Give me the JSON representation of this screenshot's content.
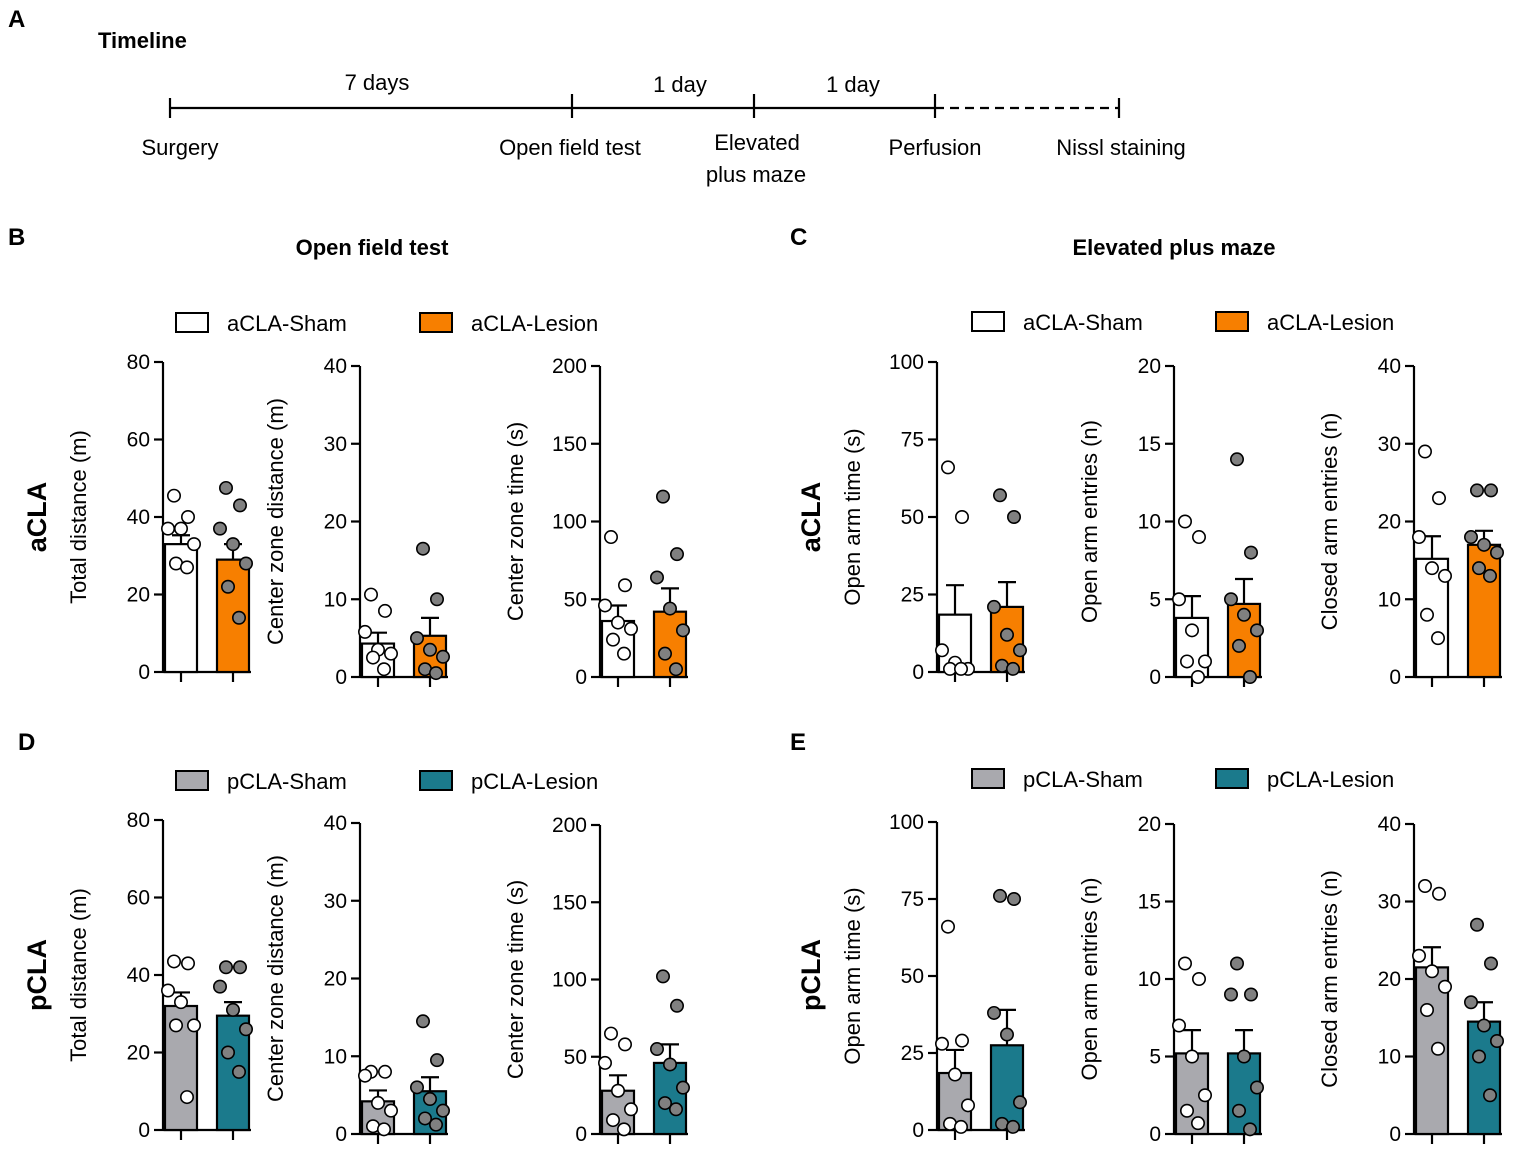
{
  "panel_letters": {
    "a": "A",
    "b": "B",
    "c": "C",
    "d": "D",
    "e": "E"
  },
  "timeline": {
    "title": "Timeline",
    "stages": [
      "Surgery",
      "Open field test",
      "Elevated",
      "plus maze",
      "Perfusion",
      "Nissl staining"
    ],
    "intervals": [
      "7 days",
      "1 day",
      "1 day"
    ]
  },
  "sections": {
    "open_field": "Open field test",
    "elevated_plus_maze": "Elevated plus maze"
  },
  "row_labels": {
    "acla": "aCLA",
    "pcla": "pCLA"
  },
  "legends": {
    "acla": {
      "sham": "aCLA-Sham",
      "lesion": "aCLA-Lesion"
    },
    "pcla": {
      "sham": "pCLA-Sham",
      "lesion": "pCLA-Lesion"
    }
  },
  "colors": {
    "acla_sham": "#ffffff",
    "acla_lesion": "#f77f00",
    "pcla_sham": "#a9a9ae",
    "pcla_lesion": "#1b7a8c",
    "dot_white": "#ffffff",
    "dot_gray": "#808080"
  },
  "chart_data": [
    {
      "id": "b1",
      "type": "bar",
      "ylabel": "Total distance (m)",
      "ylim": [
        0,
        80
      ],
      "yticks": [
        0,
        20,
        40,
        60,
        80
      ],
      "groups": [
        "aCLA-Sham",
        "aCLA-Lesion"
      ],
      "means": [
        33,
        29
      ],
      "sem": [
        2.3,
        4
      ],
      "points": [
        [
          45.5,
          40,
          37,
          37,
          33,
          28,
          27
        ],
        [
          47.5,
          43,
          37,
          33,
          28,
          22,
          14
        ]
      ]
    },
    {
      "id": "b2",
      "type": "bar",
      "ylabel": "Center zone distance (m)",
      "ylim": [
        0,
        40
      ],
      "yticks": [
        0,
        10,
        20,
        30,
        40
      ],
      "groups": [
        "aCLA-Sham",
        "aCLA-Lesion"
      ],
      "means": [
        4.3,
        5.3
      ],
      "sem": [
        1.4,
        2.3
      ],
      "points": [
        [
          10.6,
          8.5,
          5.8,
          3.5,
          3,
          2.5,
          1
        ],
        [
          16.5,
          10,
          5,
          3.5,
          2.6,
          1,
          0.5
        ]
      ]
    },
    {
      "id": "b3",
      "type": "bar",
      "ylabel": "Center zone time (s)",
      "ylim": [
        0,
        200
      ],
      "yticks": [
        0,
        50,
        100,
        150,
        200
      ],
      "groups": [
        "aCLA-Sham",
        "aCLA-Lesion"
      ],
      "means": [
        36,
        42
      ],
      "sem": [
        10,
        15
      ],
      "points": [
        [
          90,
          59,
          46,
          35,
          31,
          24,
          15
        ],
        [
          116,
          79,
          64,
          44,
          30,
          15,
          5
        ]
      ]
    },
    {
      "id": "c1",
      "type": "bar",
      "ylabel": "Open arm time (s)",
      "ylim": [
        0,
        100
      ],
      "yticks": [
        0,
        25,
        50,
        75,
        100
      ],
      "groups": [
        "aCLA-Sham",
        "aCLA-Lesion"
      ],
      "means": [
        18.5,
        21
      ],
      "sem": [
        9.5,
        8
      ],
      "points": [
        [
          66,
          50,
          7,
          3,
          1,
          1,
          1
        ],
        [
          57,
          50,
          21,
          12,
          7,
          2,
          1
        ]
      ]
    },
    {
      "id": "c2",
      "type": "bar",
      "ylabel": "Open arm entries (n)",
      "ylim": [
        0,
        20
      ],
      "yticks": [
        0,
        5,
        10,
        15,
        20
      ],
      "groups": [
        "aCLA-Sham",
        "aCLA-Lesion"
      ],
      "means": [
        3.8,
        4.7
      ],
      "sem": [
        1.4,
        1.6
      ],
      "points": [
        [
          10,
          9,
          5,
          3,
          1,
          1,
          0
        ],
        [
          14,
          8,
          5,
          4,
          3,
          2,
          0
        ]
      ]
    },
    {
      "id": "c3",
      "type": "bar",
      "ylabel": "Closed arm entries (n)",
      "ylim": [
        0,
        40
      ],
      "yticks": [
        0,
        10,
        20,
        30,
        40
      ],
      "groups": [
        "aCLA-Sham",
        "aCLA-Lesion"
      ],
      "means": [
        15.2,
        17
      ],
      "sem": [
        2.9,
        1.8
      ],
      "points": [
        [
          29,
          23,
          18,
          14,
          13,
          8,
          5
        ],
        [
          24,
          24,
          18,
          17,
          16,
          14,
          13
        ]
      ]
    },
    {
      "id": "d1",
      "type": "bar",
      "ylabel": "Total distance (m)",
      "ylim": [
        0,
        80
      ],
      "yticks": [
        0,
        20,
        40,
        60,
        80
      ],
      "groups": [
        "pCLA-Sham",
        "pCLA-Lesion"
      ],
      "means": [
        32,
        29.5
      ],
      "sem": [
        3.5,
        3.5
      ],
      "points": [
        [
          43.5,
          43,
          36,
          33,
          27,
          27,
          8.5
        ],
        [
          42,
          42,
          37,
          31,
          26,
          20,
          15
        ]
      ]
    },
    {
      "id": "d2",
      "type": "bar",
      "ylabel": "Center zone distance (m)",
      "ylim": [
        0,
        40
      ],
      "yticks": [
        0,
        10,
        20,
        30,
        40
      ],
      "groups": [
        "pCLA-Sham",
        "pCLA-Lesion"
      ],
      "means": [
        4.2,
        5.5
      ],
      "sem": [
        1.4,
        1.8
      ],
      "points": [
        [
          8,
          8,
          7.5,
          4,
          3,
          1,
          0.6
        ],
        [
          14.5,
          9.5,
          6,
          4.5,
          3,
          2,
          1.2
        ]
      ]
    },
    {
      "id": "d3",
      "type": "bar",
      "ylabel": "Center zone time (s)",
      "ylim": [
        0,
        200
      ],
      "yticks": [
        0,
        50,
        100,
        150,
        200
      ],
      "groups": [
        "pCLA-Sham",
        "pCLA-Lesion"
      ],
      "means": [
        28,
        46
      ],
      "sem": [
        10,
        12
      ],
      "points": [
        [
          65,
          58,
          46,
          28,
          16,
          9,
          3
        ],
        [
          102,
          83,
          55,
          45,
          30,
          20,
          16
        ]
      ]
    },
    {
      "id": "e1",
      "type": "bar",
      "ylabel": "Open arm time (s)",
      "ylim": [
        0,
        100
      ],
      "yticks": [
        0,
        25,
        50,
        75,
        100
      ],
      "groups": [
        "pCLA-Sham",
        "pCLA-Lesion"
      ],
      "means": [
        18.5,
        27.5
      ],
      "sem": [
        7.5,
        11.5
      ],
      "points": [
        [
          66,
          29,
          28,
          18,
          8,
          2,
          1
        ],
        [
          76,
          75,
          38,
          31,
          9,
          2,
          1
        ]
      ]
    },
    {
      "id": "e2",
      "type": "bar",
      "ylabel": "Open arm entries (n)",
      "ylim": [
        0,
        20
      ],
      "yticks": [
        0,
        5,
        10,
        15,
        20
      ],
      "groups": [
        "pCLA-Sham",
        "pCLA-Lesion"
      ],
      "means": [
        5.2,
        5.2
      ],
      "sem": [
        1.5,
        1.5
      ],
      "points": [
        [
          11,
          10,
          7,
          5,
          2.5,
          1.5,
          0.7
        ],
        [
          11,
          9,
          9,
          5,
          3,
          1.5,
          0.3
        ]
      ]
    },
    {
      "id": "e3",
      "type": "bar",
      "ylabel": "Closed arm entries (n)",
      "ylim": [
        0,
        40
      ],
      "yticks": [
        0,
        10,
        20,
        30,
        40
      ],
      "groups": [
        "pCLA-Sham",
        "pCLA-Lesion"
      ],
      "means": [
        21.5,
        14.5
      ],
      "sem": [
        2.6,
        2.5
      ],
      "points": [
        [
          32,
          31,
          23,
          21,
          19,
          16,
          11
        ],
        [
          27,
          22,
          17,
          14,
          12,
          10,
          5
        ]
      ]
    }
  ]
}
